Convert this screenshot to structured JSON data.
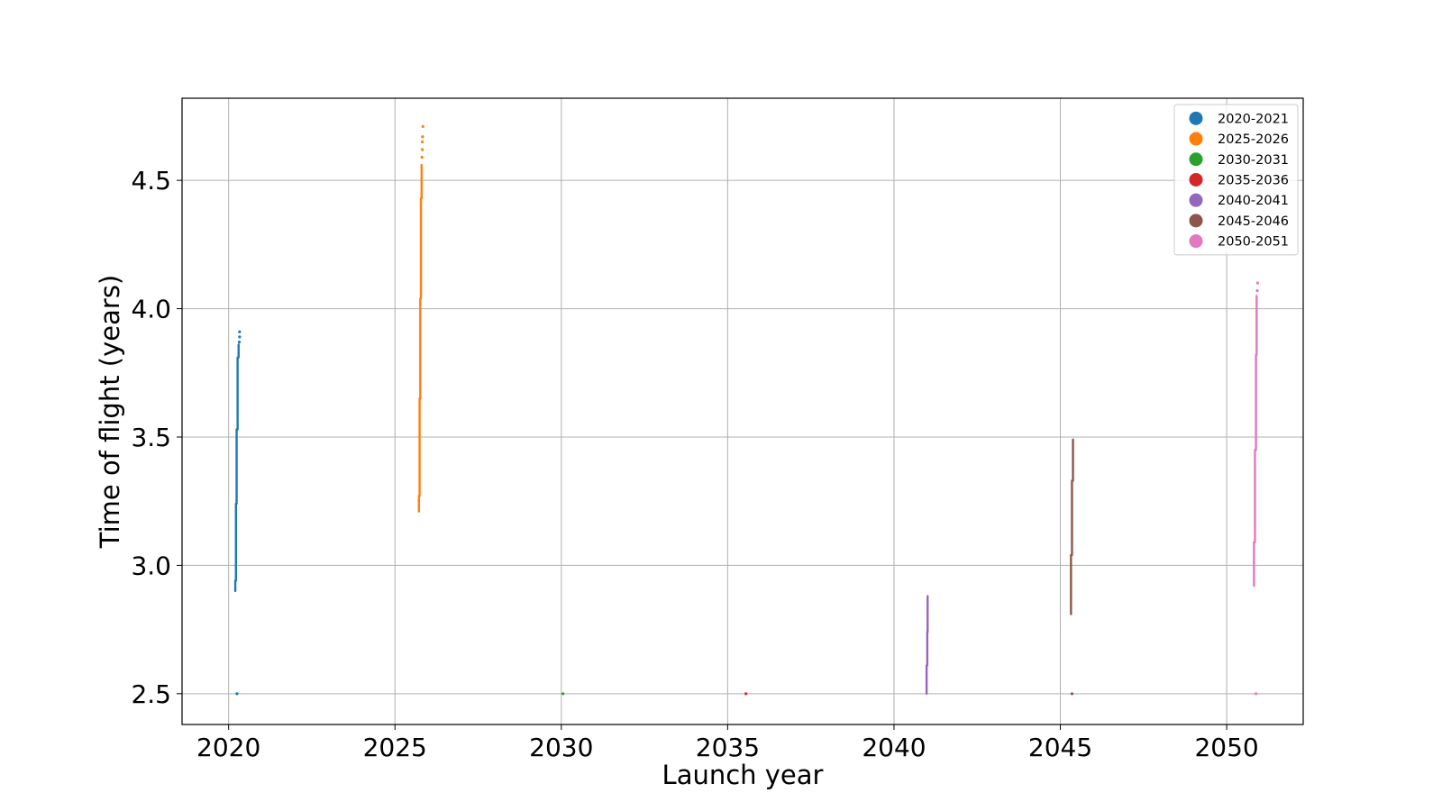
{
  "chart_data": {
    "type": "scatter",
    "xlabel": "Launch year",
    "ylabel": "Time of flight (years)",
    "xlim": [
      2018.6,
      2052.3
    ],
    "ylim": [
      2.38,
      4.82
    ],
    "xticks": [
      2020,
      2025,
      2030,
      2035,
      2040,
      2045,
      2050
    ],
    "xtick_labels": [
      "2020",
      "2025",
      "2030",
      "2035",
      "2040",
      "2045",
      "2050"
    ],
    "yticks": [
      2.5,
      3.0,
      3.5,
      4.0,
      4.5
    ],
    "ytick_labels": [
      "2.5",
      "3.0",
      "3.5",
      "4.0",
      "4.5"
    ],
    "grid": true,
    "legend_position": "top-right",
    "series": [
      {
        "name": "2020-2021",
        "color": "#1f77b4",
        "segments": [
          {
            "x": 2020.2,
            "y_min": 2.9,
            "y_max": 2.94
          },
          {
            "x": 2020.22,
            "y_min": 2.94,
            "y_max": 3.24
          },
          {
            "x": 2020.24,
            "y_min": 3.24,
            "y_max": 3.53
          },
          {
            "x": 2020.27,
            "y_min": 3.53,
            "y_max": 3.81
          },
          {
            "x": 2020.3,
            "y_min": 3.81,
            "y_max": 3.86
          }
        ],
        "points": [
          {
            "x": 2020.32,
            "y": 3.87
          },
          {
            "x": 2020.33,
            "y": 3.89
          },
          {
            "x": 2020.33,
            "y": 3.91
          },
          {
            "x": 2020.25,
            "y": 2.5
          }
        ]
      },
      {
        "name": "2025-2026",
        "color": "#ff7f0e",
        "segments": [
          {
            "x": 2025.72,
            "y_min": 3.21,
            "y_max": 3.27
          },
          {
            "x": 2025.74,
            "y_min": 3.27,
            "y_max": 3.65
          },
          {
            "x": 2025.76,
            "y_min": 3.65,
            "y_max": 4.04
          },
          {
            "x": 2025.78,
            "y_min": 4.04,
            "y_max": 4.43
          },
          {
            "x": 2025.8,
            "y_min": 4.43,
            "y_max": 4.56
          }
        ],
        "points": [
          {
            "x": 2025.81,
            "y": 4.59
          },
          {
            "x": 2025.82,
            "y": 4.62
          },
          {
            "x": 2025.82,
            "y": 4.65
          },
          {
            "x": 2025.83,
            "y": 4.67
          },
          {
            "x": 2025.84,
            "y": 4.71
          }
        ]
      },
      {
        "name": "2030-2031",
        "color": "#2ca02c",
        "segments": [],
        "points": [
          {
            "x": 2030.05,
            "y": 2.5
          }
        ]
      },
      {
        "name": "2035-2036",
        "color": "#d62728",
        "segments": [],
        "points": [
          {
            "x": 2035.55,
            "y": 2.5
          }
        ]
      },
      {
        "name": "2040-2041",
        "color": "#9467bd",
        "segments": [
          {
            "x": 2040.98,
            "y_min": 2.5,
            "y_max": 2.61
          },
          {
            "x": 2041.0,
            "y_min": 2.61,
            "y_max": 2.74
          },
          {
            "x": 2041.01,
            "y_min": 2.74,
            "y_max": 2.88
          }
        ],
        "points": []
      },
      {
        "name": "2045-2046",
        "color": "#8c564b",
        "segments": [
          {
            "x": 2045.32,
            "y_min": 2.81,
            "y_max": 3.04
          },
          {
            "x": 2045.35,
            "y_min": 3.04,
            "y_max": 3.33
          },
          {
            "x": 2045.38,
            "y_min": 3.33,
            "y_max": 3.49
          }
        ],
        "points": [
          {
            "x": 2045.35,
            "y": 2.5
          }
        ]
      },
      {
        "name": "2050-2051",
        "color": "#e377c2",
        "segments": [
          {
            "x": 2050.82,
            "y_min": 2.92,
            "y_max": 3.09
          },
          {
            "x": 2050.85,
            "y_min": 3.09,
            "y_max": 3.45
          },
          {
            "x": 2050.88,
            "y_min": 3.45,
            "y_max": 3.82
          },
          {
            "x": 2050.9,
            "y_min": 3.82,
            "y_max": 4.05
          }
        ],
        "points": [
          {
            "x": 2050.92,
            "y": 4.07
          },
          {
            "x": 2050.93,
            "y": 4.1
          },
          {
            "x": 2050.88,
            "y": 2.5
          }
        ]
      }
    ]
  }
}
